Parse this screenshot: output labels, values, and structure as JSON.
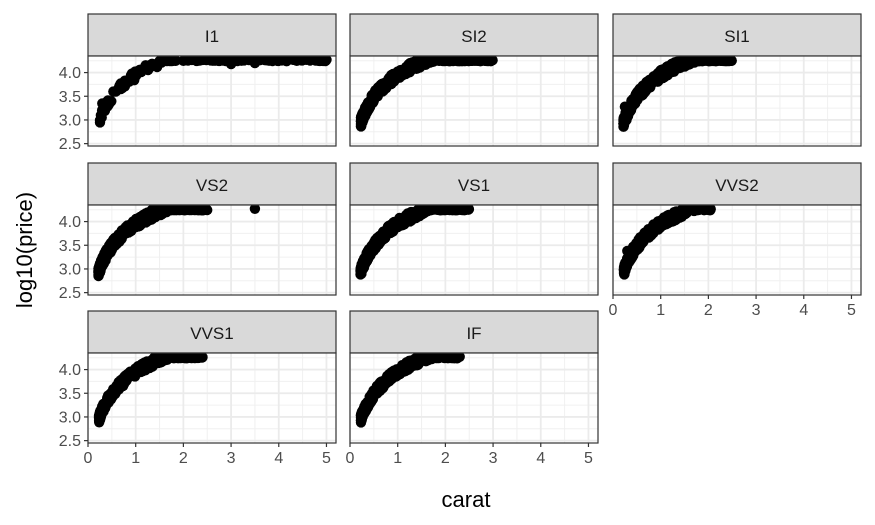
{
  "chart_data": {
    "type": "scatter",
    "title": "",
    "xlabel": "carat",
    "ylabel": "log10(price)",
    "xlim": [
      0,
      5.2
    ],
    "ylim": [
      2.45,
      4.35
    ],
    "x_ticks": [
      0,
      1,
      2,
      3,
      4,
      5
    ],
    "x_tick_labels": [
      "0",
      "1",
      "2",
      "3",
      "4",
      "5"
    ],
    "y_ticks": [
      2.5,
      3.0,
      3.5,
      4.0
    ],
    "y_tick_labels": [
      "2.5",
      "3.0",
      "3.5",
      "4.0"
    ],
    "grid": true,
    "point_color": "#000000",
    "facet_by": "clarity",
    "facets": [
      {
        "label": "I1",
        "range": [
          0.25,
          5.0
        ],
        "spread": 0.09,
        "n": 150,
        "points": [
          [
            0.3,
            3.35
          ],
          [
            3.0,
            4.18
          ],
          [
            3.5,
            4.2
          ],
          [
            4.0,
            4.26
          ],
          [
            4.5,
            4.27
          ],
          [
            5.0,
            4.27
          ]
        ]
      },
      {
        "label": "SI2",
        "range": [
          0.23,
          3.0
        ],
        "spread": 0.1,
        "n": 380,
        "points": [
          [
            1.0,
            4.02
          ]
        ]
      },
      {
        "label": "SI1",
        "range": [
          0.22,
          2.5
        ],
        "spread": 0.1,
        "n": 380,
        "points": [
          [
            0.25,
            3.28
          ]
        ]
      },
      {
        "label": "VS2",
        "range": [
          0.22,
          2.5
        ],
        "spread": 0.1,
        "n": 380,
        "points": [
          [
            3.5,
            4.27
          ]
        ]
      },
      {
        "label": "VS1",
        "range": [
          0.22,
          2.5
        ],
        "spread": 0.1,
        "n": 360,
        "points": []
      },
      {
        "label": "VVS2",
        "range": [
          0.23,
          2.05
        ],
        "spread": 0.1,
        "n": 300,
        "points": [
          [
            0.3,
            3.38
          ]
        ]
      },
      {
        "label": "VVS1",
        "range": [
          0.23,
          2.4
        ],
        "spread": 0.09,
        "n": 280,
        "points": [
          [
            2.2,
            4.27
          ],
          [
            2.4,
            4.26
          ]
        ]
      },
      {
        "label": "IF",
        "range": [
          0.23,
          2.3
        ],
        "spread": 0.09,
        "n": 280,
        "points": [
          [
            2.0,
            4.28
          ],
          [
            2.3,
            4.27
          ]
        ]
      }
    ]
  }
}
